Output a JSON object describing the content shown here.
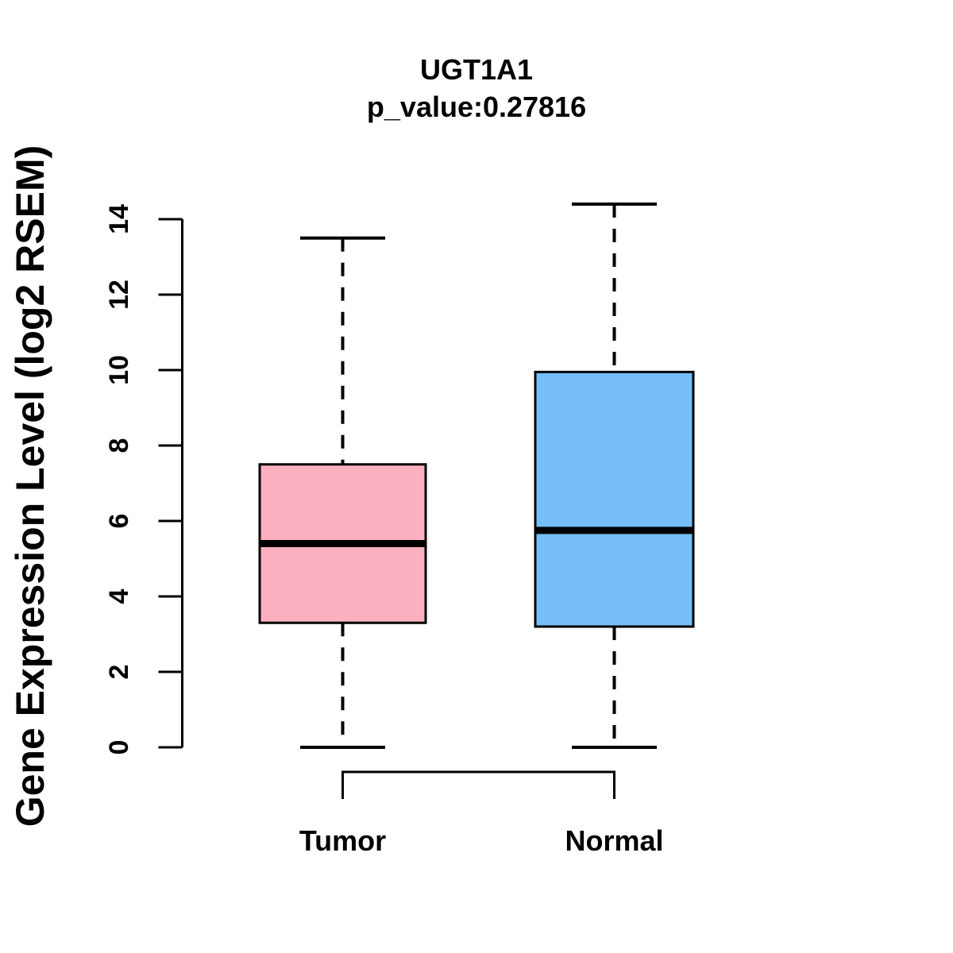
{
  "chart_data": {
    "type": "boxplot",
    "title": "UGT1A1",
    "subtitle": "p_value:0.27816",
    "ylabel": "Gene Expression Level (log2 RSEM)",
    "ylim": [
      0,
      14
    ],
    "yticks": [
      0,
      2,
      4,
      6,
      8,
      10,
      12,
      14
    ],
    "categories": [
      "Tumor",
      "Normal"
    ],
    "groups": [
      {
        "label": "Tumor",
        "color": "#FDB0C0",
        "min": 0,
        "q1": 3.3,
        "median": 5.4,
        "q3": 7.5,
        "max": 13.5
      },
      {
        "label": "Normal",
        "color": "#75BEF8",
        "min": 0,
        "q1": 3.2,
        "median": 5.75,
        "q3": 9.95,
        "max": 14.4
      }
    ],
    "whisker_style": "dashed",
    "border_color": "#000000",
    "background_color": "#FFFFFF",
    "grid": false,
    "legend": "none"
  }
}
